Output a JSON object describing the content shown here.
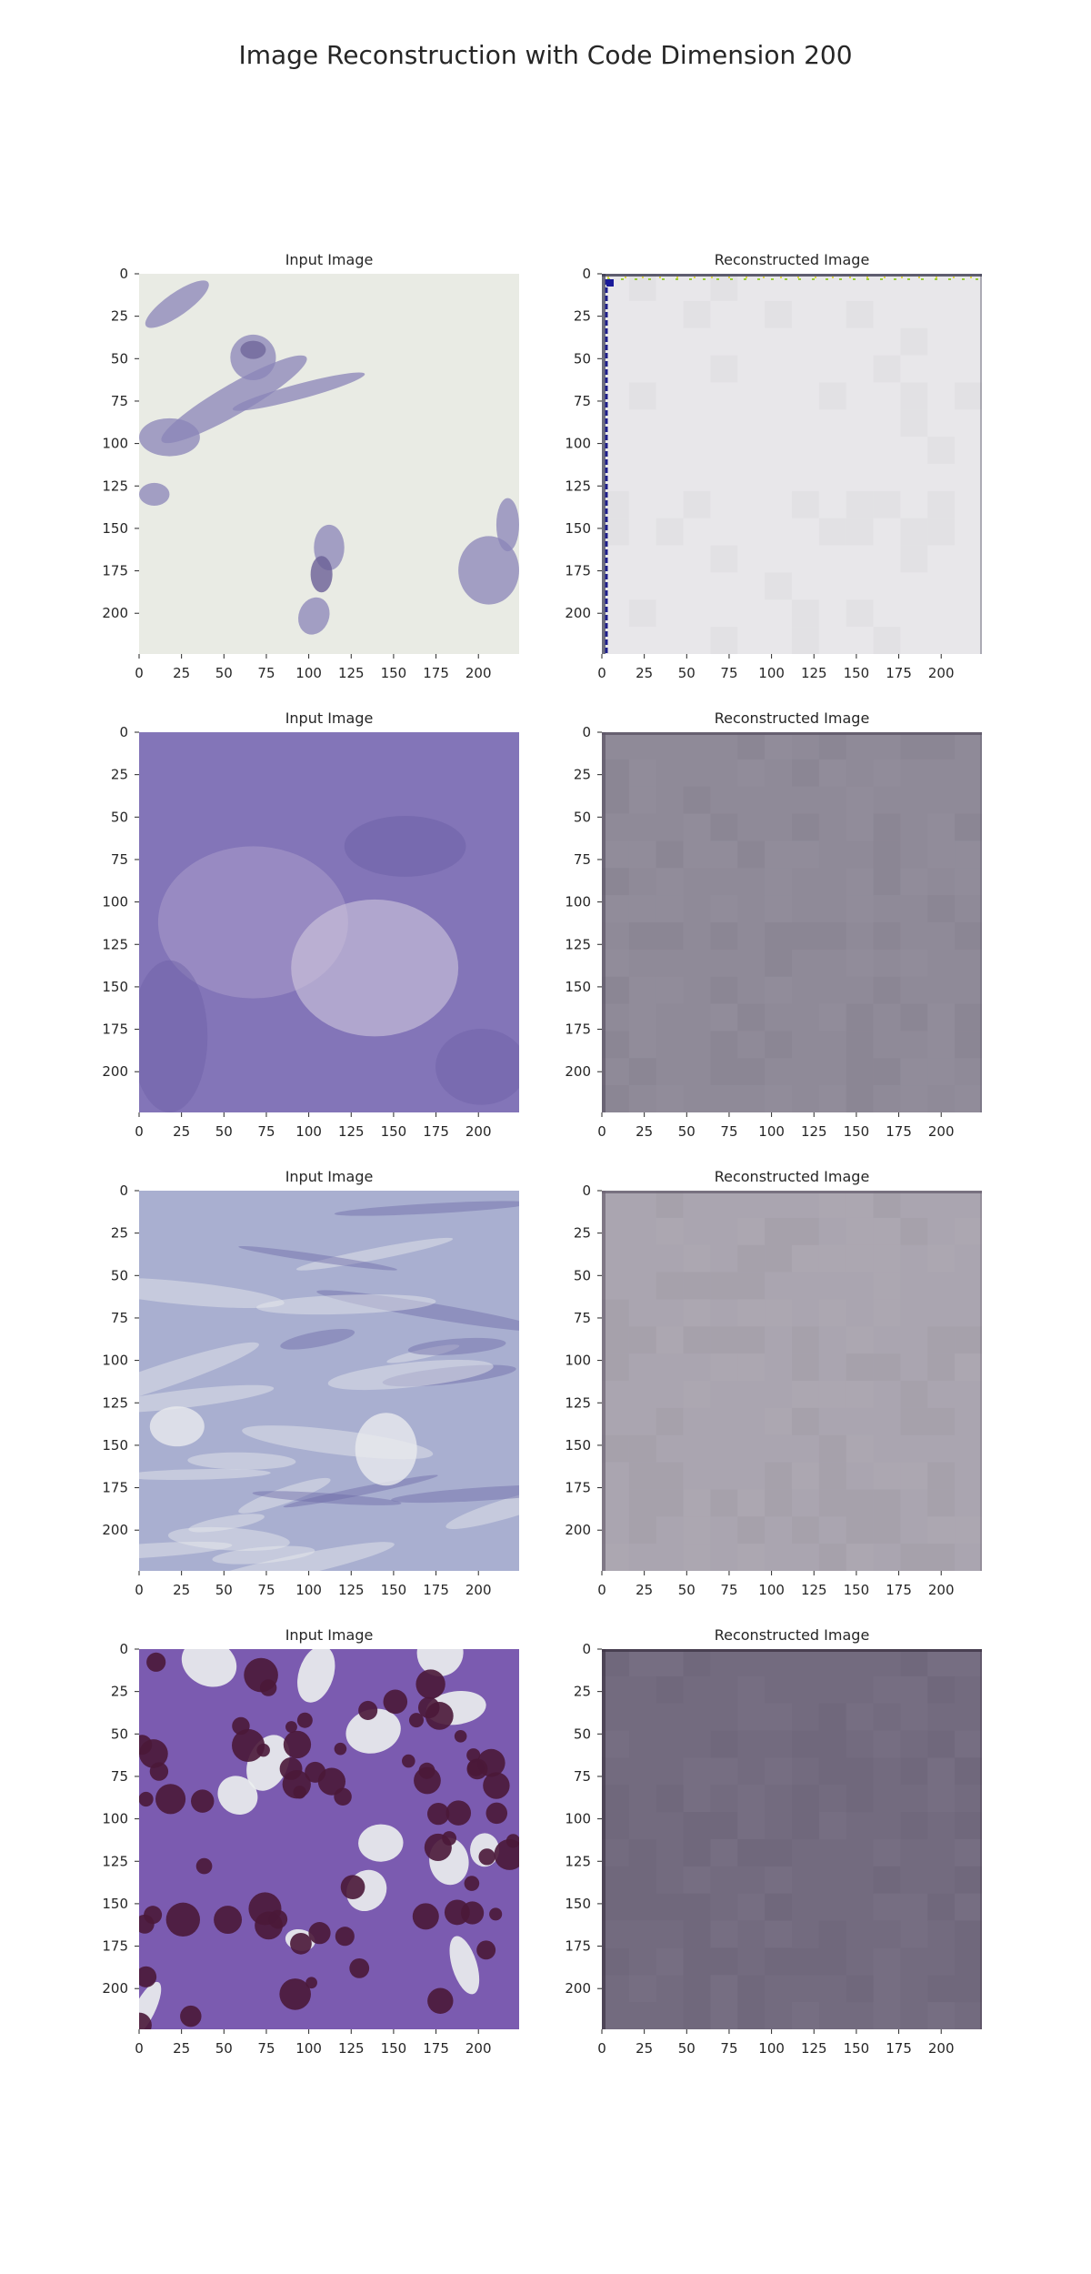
{
  "figure": {
    "title": "Image Reconstruction with Code Dimension 200"
  },
  "chart_data": [
    {
      "type": "image",
      "title": "Input Image",
      "row": 1,
      "column": "input",
      "xlim": [
        0,
        224
      ],
      "ylim": [
        224,
        0
      ],
      "xticks": [
        0,
        25,
        50,
        75,
        100,
        125,
        150,
        175,
        200
      ],
      "yticks": [
        0,
        25,
        50,
        75,
        100,
        125,
        150,
        175,
        200
      ],
      "grid": false,
      "colors": {
        "background": "#e9ebe4",
        "stain": "#8a84b8",
        "stain_dark": "#6a5f96"
      }
    },
    {
      "type": "image",
      "title": "Reconstructed Image",
      "row": 1,
      "column": "reconstruction",
      "xlim": [
        0,
        224
      ],
      "ylim": [
        224,
        0
      ],
      "xticks": [
        0,
        25,
        50,
        75,
        100,
        125,
        150,
        175,
        200
      ],
      "yticks": [
        0,
        25,
        50,
        75,
        100,
        125,
        150,
        175,
        200
      ],
      "grid": false,
      "colors": {
        "background": "#e8e7ea",
        "edge": "#3b3b50"
      }
    },
    {
      "type": "image",
      "title": "Input Image",
      "row": 2,
      "column": "input",
      "xlim": [
        0,
        224
      ],
      "ylim": [
        224,
        0
      ],
      "xticks": [
        0,
        25,
        50,
        75,
        100,
        125,
        150,
        175,
        200
      ],
      "yticks": [
        0,
        25,
        50,
        75,
        100,
        125,
        150,
        175,
        200
      ],
      "grid": false,
      "colors": {
        "background": "#8375b8",
        "highlight": "#d6cde0",
        "stain_dark": "#6c5fa6"
      }
    },
    {
      "type": "image",
      "title": "Reconstructed Image",
      "row": 2,
      "column": "reconstruction",
      "xlim": [
        0,
        224
      ],
      "ylim": [
        224,
        0
      ],
      "xticks": [
        0,
        25,
        50,
        75,
        100,
        125,
        150,
        175,
        200
      ],
      "yticks": [
        0,
        25,
        50,
        75,
        100,
        125,
        150,
        175,
        200
      ],
      "grid": false,
      "colors": {
        "background": "#8f8a98",
        "edge": "#5c5566"
      }
    },
    {
      "type": "image",
      "title": "Input Image",
      "row": 3,
      "column": "input",
      "xlim": [
        0,
        224
      ],
      "ylim": [
        224,
        0
      ],
      "xticks": [
        0,
        25,
        50,
        75,
        100,
        125,
        150,
        175,
        200
      ],
      "yticks": [
        0,
        25,
        50,
        75,
        100,
        125,
        150,
        175,
        200
      ],
      "grid": false,
      "colors": {
        "background": "#a9afd0",
        "highlight": "#e8eaee",
        "stain_dark": "#6d6ba8"
      }
    },
    {
      "type": "image",
      "title": "Reconstructed Image",
      "row": 3,
      "column": "reconstruction",
      "xlim": [
        0,
        224
      ],
      "ylim": [
        224,
        0
      ],
      "xticks": [
        0,
        25,
        50,
        75,
        100,
        125,
        150,
        175,
        200
      ],
      "yticks": [
        0,
        25,
        50,
        75,
        100,
        125,
        150,
        175,
        200
      ],
      "grid": false,
      "colors": {
        "background": "#aaa5b0",
        "edge": "#6c6474"
      }
    },
    {
      "type": "image",
      "title": "Input Image",
      "row": 4,
      "column": "input",
      "xlim": [
        0,
        224
      ],
      "ylim": [
        224,
        0
      ],
      "xticks": [
        0,
        25,
        50,
        75,
        100,
        125,
        150,
        175,
        200
      ],
      "yticks": [
        0,
        25,
        50,
        75,
        100,
        125,
        150,
        175,
        200
      ],
      "grid": false,
      "colors": {
        "background": "#7b5bb0",
        "highlight": "#eceff0",
        "stain_dark": "#4a1838"
      }
    },
    {
      "type": "image",
      "title": "Reconstructed Image",
      "row": 4,
      "column": "reconstruction",
      "xlim": [
        0,
        224
      ],
      "ylim": [
        224,
        0
      ],
      "xticks": [
        0,
        25,
        50,
        75,
        100,
        125,
        150,
        175,
        200
      ],
      "yticks": [
        0,
        25,
        50,
        75,
        100,
        125,
        150,
        175,
        200
      ],
      "grid": false,
      "colors": {
        "background": "#736b7f",
        "edge": "#3e3546"
      }
    }
  ]
}
